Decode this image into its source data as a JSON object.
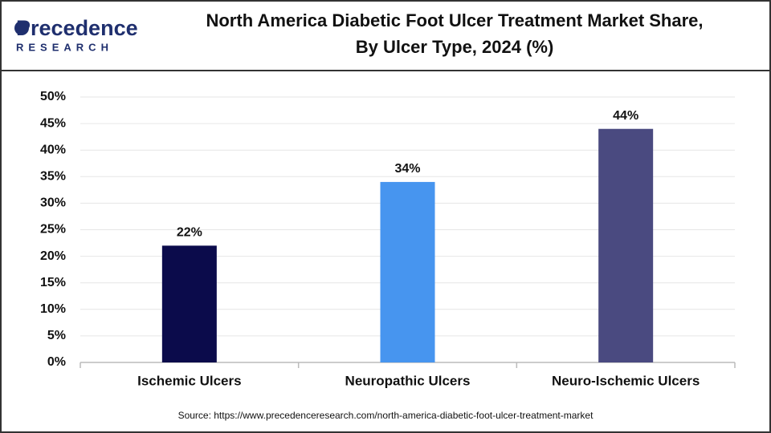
{
  "logo": {
    "name": "Precedence",
    "tagline": "RESEARCH"
  },
  "chart_data": {
    "type": "bar",
    "title": [
      "North America Diabetic Foot Ulcer Treatment Market Share,",
      "By Ulcer Type, 2024 (%)"
    ],
    "categories": [
      "Ischemic Ulcers",
      "Neuropathic Ulcers",
      "Neuro-Ischemic Ulcers"
    ],
    "values": [
      22,
      34,
      44
    ],
    "value_labels": [
      "22%",
      "34%",
      "44%"
    ],
    "colors": [
      "#0b0b4b",
      "#4795ef",
      "#4a4a80"
    ],
    "ylim": [
      0,
      50
    ],
    "yticks": [
      {
        "value": 0,
        "label": "0%"
      },
      {
        "value": 5,
        "label": "5%"
      },
      {
        "value": 10,
        "label": "10%"
      },
      {
        "value": 15,
        "label": "15%"
      },
      {
        "value": 20,
        "label": "20%"
      },
      {
        "value": 25,
        "label": "25%"
      },
      {
        "value": 30,
        "label": "30%"
      },
      {
        "value": 35,
        "label": "35%"
      },
      {
        "value": 40,
        "label": "40%"
      },
      {
        "value": 45,
        "label": "45%"
      },
      {
        "value": 50,
        "label": "50%"
      }
    ],
    "grid": true,
    "source": "Source: https://www.precedenceresearch.com/north-america-diabetic-foot-ulcer-treatment-market"
  }
}
